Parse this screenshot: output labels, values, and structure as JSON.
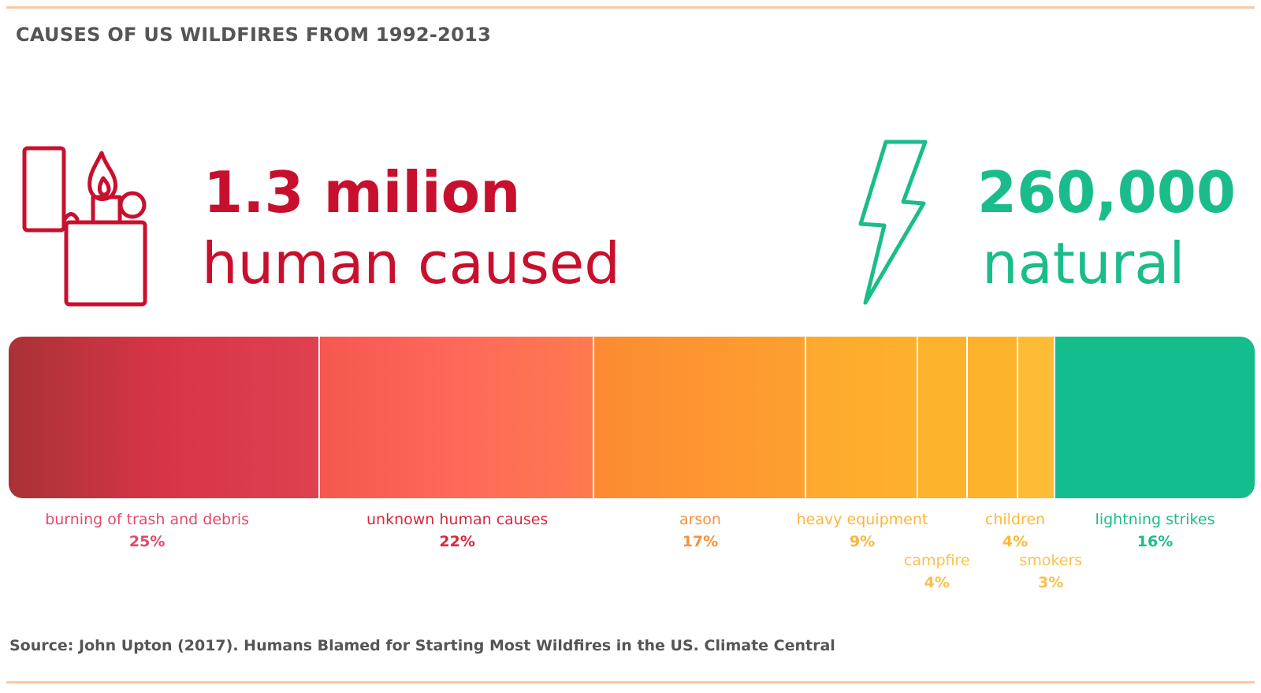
{
  "title": "CAUSES OF US WILDFIRES FROM 1992-2013",
  "human": {
    "count": "1.3 milion",
    "label": "human caused",
    "color": "#c8102e",
    "icon": "lighter-icon"
  },
  "natural": {
    "count": "260,000",
    "label": "natural",
    "color": "#1bbc8c",
    "icon": "lightning-bolt-icon"
  },
  "chart_data": {
    "type": "bar",
    "orientation": "horizontal-stacked",
    "unit": "%",
    "categories": [
      "burning of trash and debris",
      "unknown human causes",
      "arson",
      "heavy equipment",
      "campfire",
      "children",
      "smokers",
      "lightning strikes"
    ],
    "values": [
      25,
      22,
      17,
      9,
      4,
      4,
      3,
      16
    ],
    "colors": [
      "#c5283d",
      "#fb6a5a",
      "#fb8c34",
      "#fdac2e",
      "#fdb22c",
      "#fdb22c",
      "#fdbc34",
      "#13bd8c"
    ],
    "gradients": [
      [
        "#a93236",
        "#d83448",
        "#de4150"
      ],
      [
        "#f5574f",
        "#fe695b",
        "#fe7a4e"
      ],
      [
        "#fc8a33",
        "#fd9630",
        "#fda030"
      ],
      [
        "#fda92e",
        "#feb12c"
      ],
      [
        "#fdb22c",
        "#fdb22c"
      ],
      [
        "#fdb22c",
        "#fdb22c"
      ],
      [
        "#fdbc34",
        "#fdbc34"
      ],
      [
        "#13bd8c",
        "#13bd8c"
      ]
    ],
    "label_colors": [
      "#e3496b",
      "#d8273f",
      "#fb8f3c",
      "#fdb43b",
      "#f9c04e",
      "#f9b83c",
      "#f9c04e",
      "#1bbc8c"
    ],
    "labels": [
      "burning of trash and debris",
      "unknown human causes",
      "arson",
      "heavy equipment",
      "campfire",
      "children",
      "smokers",
      "lightning strikes"
    ],
    "pct_labels": [
      "25%",
      "22%",
      "17%",
      "9%",
      "4%",
      "4%",
      "3%",
      "16%"
    ]
  },
  "source": "Source: John Upton (2017). Humans Blamed for Starting Most Wildfires in the US. Climate Central"
}
